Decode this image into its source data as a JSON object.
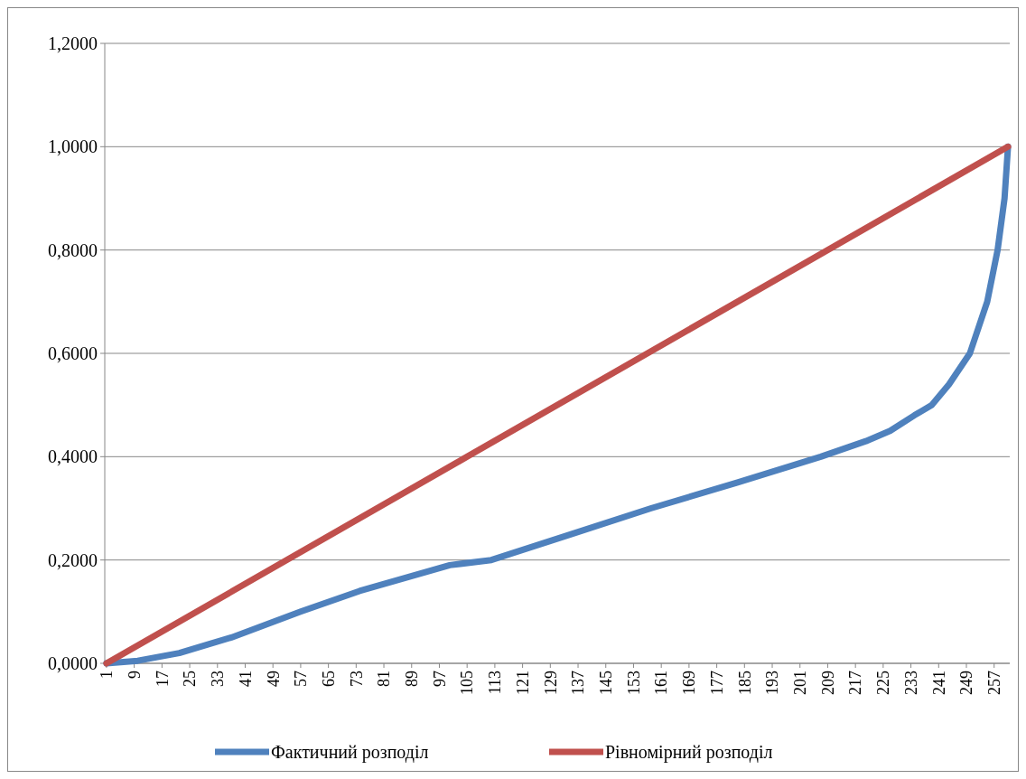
{
  "chart_data": {
    "type": "line",
    "xlim": [
      0.5,
      261.5
    ],
    "xticks": [
      1,
      9,
      17,
      25,
      33,
      41,
      49,
      57,
      65,
      73,
      81,
      89,
      97,
      105,
      113,
      121,
      129,
      137,
      145,
      153,
      161,
      169,
      177,
      185,
      193,
      201,
      209,
      217,
      225,
      233,
      241,
      249,
      257
    ],
    "ylim": [
      0,
      1.2
    ],
    "yticks": [
      {
        "value": 0,
        "label": "0,0000"
      },
      {
        "value": 0.2,
        "label": "0,2000"
      },
      {
        "value": 0.4,
        "label": "0,4000"
      },
      {
        "value": 0.6,
        "label": "0,6000"
      },
      {
        "value": 0.8,
        "label": "0,8000"
      },
      {
        "value": 1,
        "label": "1,0000"
      },
      {
        "value": 1.2,
        "label": "1,2000"
      }
    ],
    "grid": "y",
    "legend": "bottom",
    "marker": "none",
    "line_style": "solid",
    "series": [
      {
        "name": "Фактичний розподіл",
        "color": "#4f81bd",
        "x": [
          1,
          10,
          22,
          30,
          37,
          45,
          57,
          74,
          100,
          112,
          135,
          158,
          183,
          207,
          220,
          227,
          234,
          239,
          244,
          250,
          255,
          258,
          260,
          261
        ],
        "values": [
          0,
          0.005,
          0.02,
          0.036,
          0.05,
          0.07,
          0.1,
          0.14,
          0.19,
          0.2,
          0.25,
          0.3,
          0.35,
          0.4,
          0.43,
          0.45,
          0.48,
          0.5,
          0.54,
          0.6,
          0.7,
          0.8,
          0.9,
          1
        ]
      },
      {
        "name": "Рівномірний розподіл",
        "color": "#c0504d",
        "x": [
          1,
          261
        ],
        "values": [
          0,
          1
        ]
      }
    ]
  }
}
